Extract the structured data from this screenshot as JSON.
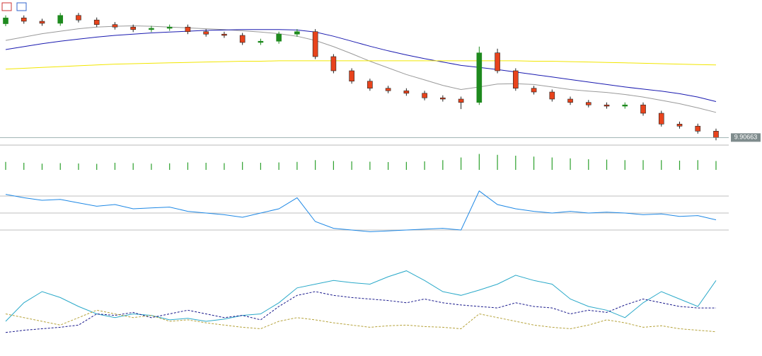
{
  "chart_data": [
    {
      "type": "candlestick",
      "ylim": [
        9.88,
        10.22
      ],
      "up_color": "#1e8a1e",
      "down_color": "#e8431c",
      "last_price": 9.90663,
      "open": [
        10.18,
        10.194,
        10.186,
        10.181,
        10.2,
        10.189,
        10.178,
        10.172,
        10.166,
        10.169,
        10.172,
        10.161,
        10.155,
        10.152,
        10.135,
        10.138,
        10.155,
        10.161,
        10.101,
        10.067,
        10.042,
        10.025,
        10.019,
        10.013,
        10.002,
        9.999,
        9.991,
        10.11,
        10.067,
        10.025,
        10.016,
        9.999,
        9.991,
        9.985,
        9.982,
        9.985,
        9.965,
        9.939,
        9.934,
        9.922
      ],
      "high": [
        10.2,
        10.2,
        10.192,
        10.206,
        10.206,
        10.195,
        10.184,
        10.178,
        10.175,
        10.178,
        10.178,
        10.167,
        10.161,
        10.158,
        10.144,
        10.161,
        10.167,
        10.167,
        10.107,
        10.073,
        10.048,
        10.031,
        10.025,
        10.019,
        10.008,
        10.005,
        10.125,
        10.12,
        10.073,
        10.031,
        10.022,
        10.005,
        9.997,
        9.991,
        9.991,
        9.991,
        9.971,
        9.945,
        9.94,
        9.928
      ],
      "low": [
        10.174,
        10.18,
        10.175,
        10.175,
        10.183,
        10.172,
        10.166,
        10.16,
        10.16,
        10.163,
        10.155,
        10.149,
        10.146,
        10.129,
        10.129,
        10.132,
        10.149,
        10.095,
        10.061,
        10.036,
        10.019,
        10.013,
        10.007,
        9.996,
        9.993,
        9.975,
        9.985,
        10.061,
        10.019,
        10.01,
        9.993,
        9.985,
        9.979,
        9.976,
        9.976,
        9.959,
        9.933,
        9.928,
        9.916,
        9.9
      ],
      "close": [
        10.194,
        10.186,
        10.181,
        10.2,
        10.189,
        10.178,
        10.172,
        10.166,
        10.169,
        10.172,
        10.161,
        10.155,
        10.152,
        10.135,
        10.138,
        10.155,
        10.161,
        10.101,
        10.067,
        10.042,
        10.025,
        10.019,
        10.013,
        10.002,
        9.999,
        9.991,
        10.11,
        10.067,
        10.025,
        10.016,
        9.999,
        9.991,
        9.985,
        9.982,
        9.985,
        9.965,
        9.939,
        9.934,
        9.922,
        9.90663
      ],
      "series": [
        {
          "color": "#9a9a9a",
          "values": [
            10.14,
            10.148,
            10.156,
            10.162,
            10.168,
            10.172,
            10.174,
            10.175,
            10.174,
            10.172,
            10.17,
            10.168,
            10.166,
            10.163,
            10.16,
            10.156,
            10.15,
            10.14,
            10.125,
            10.108,
            10.09,
            10.074,
            10.058,
            10.045,
            10.032,
            10.022,
            10.028,
            10.035,
            10.036,
            10.034,
            10.028,
            10.022,
            10.018,
            10.015,
            10.01,
            10.004,
            9.996,
            9.988,
            9.978,
            9.967
          ]
        },
        {
          "color": "#1a1ab0",
          "values": [
            10.118,
            10.125,
            10.132,
            10.138,
            10.143,
            10.148,
            10.152,
            10.155,
            10.158,
            10.16,
            10.162,
            10.164,
            10.165,
            10.166,
            10.166,
            10.166,
            10.165,
            10.16,
            10.15,
            10.138,
            10.126,
            10.115,
            10.105,
            10.096,
            10.088,
            10.08,
            10.075,
            10.07,
            10.064,
            10.058,
            10.052,
            10.046,
            10.04,
            10.034,
            10.028,
            10.023,
            10.018,
            10.012,
            10.004,
            9.993
          ]
        },
        {
          "color": "#f2e600",
          "values": [
            10.071,
            10.073,
            10.075,
            10.077,
            10.079,
            10.081,
            10.083,
            10.084,
            10.085,
            10.086,
            10.087,
            10.088,
            10.089,
            10.09,
            10.09,
            10.091,
            10.091,
            10.091,
            10.091,
            10.091,
            10.091,
            10.091,
            10.091,
            10.091,
            10.091,
            10.091,
            10.091,
            10.091,
            10.091,
            10.09,
            10.09,
            10.089,
            10.088,
            10.087,
            10.086,
            10.085,
            10.084,
            10.083,
            10.082,
            10.081
          ]
        }
      ]
    },
    {
      "type": "bar",
      "ylim": [
        0,
        100
      ],
      "color": "#2ca02c",
      "values": [
        45,
        40,
        35,
        38,
        36,
        34,
        40,
        38,
        35,
        37,
        42,
        40,
        38,
        45,
        40,
        42,
        45,
        55,
        50,
        48,
        46,
        44,
        45,
        48,
        55,
        70,
        90,
        85,
        80,
        75,
        70,
        65,
        60,
        58,
        55,
        55,
        55,
        52,
        55,
        50
      ]
    },
    {
      "type": "line",
      "ylim": [
        0,
        100
      ],
      "levels": [
        70,
        50,
        30
      ],
      "series": [
        {
          "color": "#1e88e5",
          "dash": false,
          "values": [
            72,
            68,
            65,
            66,
            62,
            58,
            60,
            55,
            56,
            57,
            52,
            50,
            48,
            45,
            50,
            55,
            68,
            40,
            32,
            30,
            28,
            29,
            30,
            31,
            32,
            30,
            76,
            60,
            55,
            52,
            50,
            52,
            50,
            51,
            50,
            48,
            49,
            46,
            47,
            42
          ]
        }
      ]
    },
    {
      "type": "line",
      "ylim": [
        0,
        100
      ],
      "series": [
        {
          "color": "#2aa9c9",
          "dash": false,
          "values": [
            20,
            45,
            60,
            52,
            40,
            30,
            25,
            30,
            28,
            22,
            24,
            20,
            23,
            28,
            30,
            45,
            65,
            70,
            75,
            72,
            70,
            80,
            88,
            75,
            60,
            55,
            62,
            70,
            82,
            75,
            70,
            50,
            40,
            35,
            25,
            45,
            60,
            50,
            40,
            75
          ]
        },
        {
          "color": "#1a1a8c",
          "dash": true,
          "values": [
            5,
            8,
            10,
            12,
            15,
            30,
            28,
            32,
            25,
            30,
            35,
            30,
            25,
            28,
            22,
            40,
            55,
            60,
            55,
            52,
            50,
            48,
            45,
            50,
            45,
            42,
            40,
            38,
            45,
            40,
            38,
            30,
            35,
            32,
            42,
            50,
            45,
            40,
            38,
            38
          ]
        },
        {
          "color": "#b5a23a",
          "dash": true,
          "values": [
            30,
            25,
            20,
            15,
            25,
            35,
            30,
            25,
            28,
            20,
            22,
            18,
            15,
            12,
            10,
            20,
            25,
            22,
            18,
            15,
            12,
            14,
            15,
            13,
            12,
            10,
            30,
            25,
            20,
            15,
            12,
            10,
            15,
            22,
            18,
            12,
            14,
            10,
            8,
            6
          ]
        }
      ]
    }
  ]
}
